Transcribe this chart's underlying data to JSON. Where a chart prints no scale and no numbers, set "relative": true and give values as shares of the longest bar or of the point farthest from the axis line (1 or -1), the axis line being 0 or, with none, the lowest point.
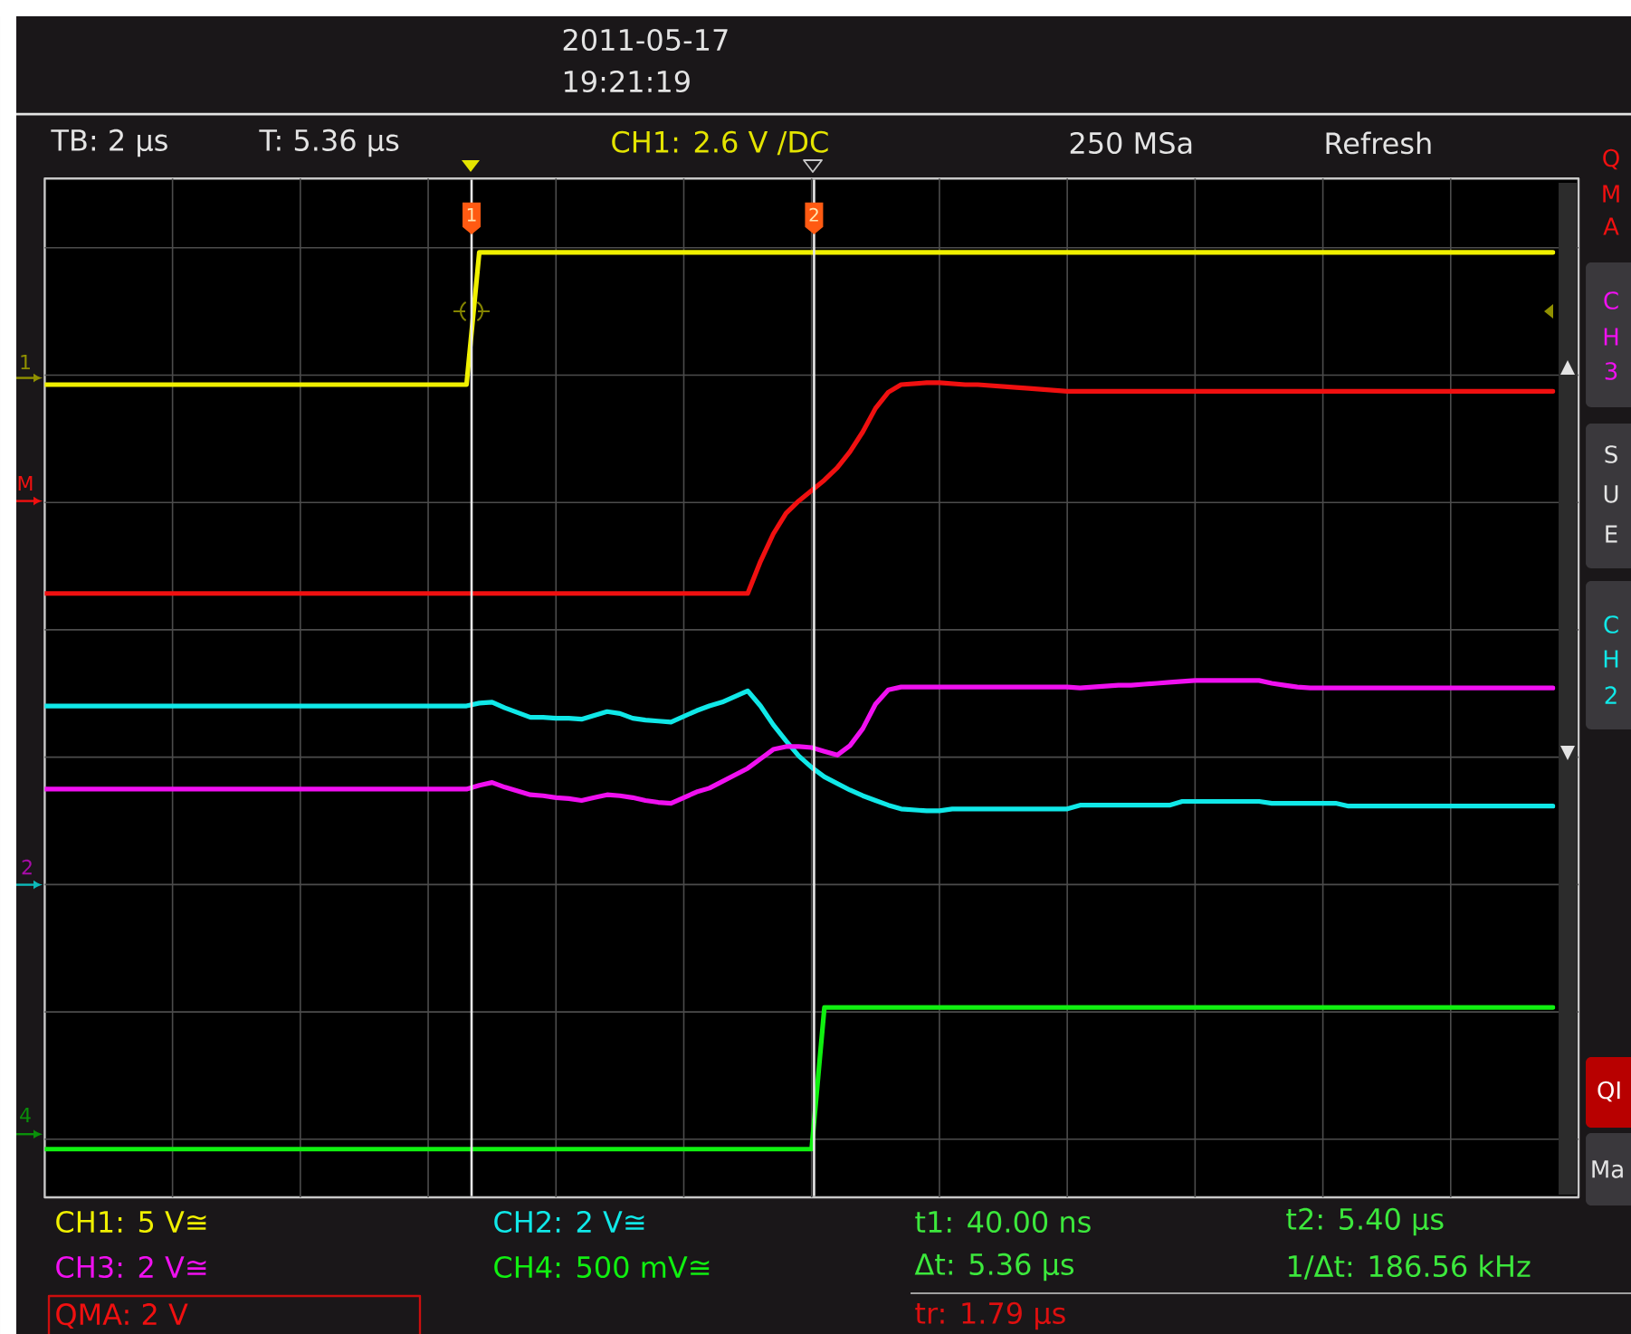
{
  "chart_data": {
    "type": "line",
    "relative": true,
    "grid": true,
    "categories": [
      null,
      null,
      null,
      null,
      null,
      null,
      null,
      null,
      null,
      null,
      null,
      null,
      null,
      null,
      null,
      null,
      null,
      null,
      null,
      null,
      null,
      null,
      null,
      null,
      null,
      null,
      null,
      null,
      null,
      null,
      null,
      null,
      null,
      null,
      null,
      null,
      null,
      null,
      null,
      null,
      null,
      null,
      null,
      null,
      null,
      null,
      null,
      null,
      null,
      null,
      null,
      null,
      null,
      null,
      null,
      null,
      null,
      null,
      null,
      null,
      null,
      null,
      null,
      null,
      null,
      null,
      null,
      null,
      null,
      null,
      null,
      null,
      null,
      null,
      null,
      null,
      null,
      null,
      null,
      null,
      null,
      null,
      null,
      null,
      null,
      null,
      null,
      null,
      null,
      null,
      null,
      null,
      null,
      null,
      null,
      null,
      null,
      null,
      null,
      null,
      null,
      null,
      null,
      null,
      null,
      null,
      null,
      null,
      null,
      null,
      null,
      null,
      null,
      null,
      null,
      null,
      null,
      null,
      null
    ],
    "series": [
      {
        "name": "CH1: 5 V≅",
        "color": "#F0F000",
        "values": [
          0.86,
          0.86,
          0.86,
          0.86,
          0.86,
          0.86,
          0.86,
          0.86,
          0.86,
          0.86,
          0.86,
          0.86,
          0.86,
          0.86,
          0.86,
          0.86,
          0.86,
          0.86,
          0.86,
          0.86,
          0.86,
          0.86,
          0.86,
          0.86,
          0.86,
          0.86,
          0.86,
          0.86,
          0.86,
          0.86,
          0.86,
          0.86,
          0.86,
          0.86,
          1,
          1,
          1,
          1,
          1,
          1,
          1,
          1,
          1,
          1,
          1,
          1,
          1,
          1,
          1,
          1,
          1,
          1,
          1,
          1,
          1,
          1,
          1,
          1,
          1,
          1,
          1,
          1,
          1,
          1,
          1,
          1,
          1,
          1,
          1,
          1,
          1,
          1,
          1,
          1,
          1,
          1,
          1,
          1,
          1,
          1,
          1,
          1,
          1,
          1,
          1,
          1,
          1,
          1,
          1,
          1,
          1,
          1,
          1,
          1,
          1,
          1,
          1,
          1,
          1,
          1,
          1,
          1,
          1,
          1,
          1,
          1,
          1,
          1,
          1,
          1,
          1,
          1,
          1,
          1,
          1,
          1,
          1,
          1,
          1
        ]
      },
      {
        "name": "CH2: 2 V≅",
        "color": "#10E8E8",
        "values": [
          0.52,
          0.52,
          0.52,
          0.52,
          0.52,
          0.52,
          0.52,
          0.52,
          0.52,
          0.52,
          0.52,
          0.52,
          0.52,
          0.52,
          0.52,
          0.52,
          0.52,
          0.52,
          0.52,
          0.52,
          0.52,
          0.52,
          0.52,
          0.52,
          0.52,
          0.52,
          0.52,
          0.52,
          0.52,
          0.52,
          0.52,
          0.52,
          0.52,
          0.52,
          0.523,
          0.524,
          0.518,
          0.513,
          0.508,
          0.508,
          0.507,
          0.507,
          0.506,
          0.51,
          0.514,
          0.512,
          0.507,
          0.505,
          0.504,
          0.503,
          0.509,
          0.515,
          0.52,
          0.524,
          0.53,
          0.536,
          0.52,
          0.5,
          0.483,
          0.467,
          0.455,
          0.445,
          0.438,
          0.431,
          0.425,
          0.42,
          0.415,
          0.411,
          0.41,
          0.409,
          0.409,
          0.411,
          0.411,
          0.411,
          0.411,
          0.411,
          0.411,
          0.411,
          0.411,
          0.411,
          0.411,
          0.415,
          0.415,
          0.415,
          0.415,
          0.415,
          0.415,
          0.415,
          0.415,
          0.419,
          0.419,
          0.419,
          0.419,
          0.419,
          0.419,
          0.419,
          0.417,
          0.417,
          0.417,
          0.417,
          0.417,
          0.417,
          0.414,
          0.414,
          0.414,
          0.414,
          0.414,
          0.414,
          0.414,
          0.414,
          0.414,
          0.414,
          0.414,
          0.414,
          0.414,
          0.414,
          0.414,
          0.414,
          0.414
        ]
      },
      {
        "name": "CH3: 2 V≅",
        "color": "#F010F0",
        "values": [
          0.432,
          0.432,
          0.432,
          0.432,
          0.432,
          0.432,
          0.432,
          0.432,
          0.432,
          0.432,
          0.432,
          0.432,
          0.432,
          0.432,
          0.432,
          0.432,
          0.432,
          0.432,
          0.432,
          0.432,
          0.432,
          0.432,
          0.432,
          0.432,
          0.432,
          0.432,
          0.432,
          0.432,
          0.432,
          0.432,
          0.432,
          0.432,
          0.432,
          0.432,
          0.436,
          0.439,
          0.434,
          0.43,
          0.426,
          0.425,
          0.423,
          0.422,
          0.42,
          0.423,
          0.426,
          0.425,
          0.423,
          0.42,
          0.418,
          0.417,
          0.423,
          0.429,
          0.433,
          0.44,
          0.447,
          0.454,
          0.464,
          0.474,
          0.477,
          0.477,
          0.476,
          0.472,
          0.468,
          0.478,
          0.496,
          0.522,
          0.537,
          0.54,
          0.54,
          0.54,
          0.54,
          0.54,
          0.54,
          0.54,
          0.54,
          0.54,
          0.54,
          0.54,
          0.54,
          0.54,
          0.54,
          0.539,
          0.54,
          0.541,
          0.542,
          0.542,
          0.543,
          0.544,
          0.545,
          0.546,
          0.547,
          0.547,
          0.547,
          0.547,
          0.547,
          0.547,
          0.544,
          0.542,
          0.54,
          0.539,
          0.539,
          0.539,
          0.539,
          0.539,
          0.539,
          0.539,
          0.539,
          0.539,
          0.539,
          0.539,
          0.539,
          0.539,
          0.539,
          0.539,
          0.539,
          0.539,
          0.539,
          0.539,
          0.539
        ]
      },
      {
        "name": "CH4: 500 mV≅",
        "color": "#10F010",
        "values": [
          0.051,
          0.051,
          0.051,
          0.051,
          0.051,
          0.051,
          0.051,
          0.051,
          0.051,
          0.051,
          0.051,
          0.051,
          0.051,
          0.051,
          0.051,
          0.051,
          0.051,
          0.051,
          0.051,
          0.051,
          0.051,
          0.051,
          0.051,
          0.051,
          0.051,
          0.051,
          0.051,
          0.051,
          0.051,
          0.051,
          0.051,
          0.051,
          0.051,
          0.051,
          0.051,
          0.051,
          0.051,
          0.051,
          0.051,
          0.051,
          0.051,
          0.051,
          0.051,
          0.051,
          0.051,
          0.051,
          0.051,
          0.051,
          0.051,
          0.051,
          0.051,
          0.051,
          0.051,
          0.051,
          0.051,
          0.051,
          0.051,
          0.051,
          0.051,
          0.051,
          0.051,
          0.201,
          0.201,
          0.201,
          0.201,
          0.201,
          0.201,
          0.201,
          0.201,
          0.201,
          0.201,
          0.201,
          0.201,
          0.201,
          0.201,
          0.201,
          0.201,
          0.201,
          0.201,
          0.201,
          0.201,
          0.201,
          0.201,
          0.201,
          0.201,
          0.201,
          0.201,
          0.201,
          0.201,
          0.201,
          0.201,
          0.201,
          0.201,
          0.201,
          0.201,
          0.201,
          0.201,
          0.201,
          0.201,
          0.201,
          0.201,
          0.201,
          0.201,
          0.201,
          0.201,
          0.201,
          0.201,
          0.201,
          0.201,
          0.201,
          0.201,
          0.201,
          0.201,
          0.201,
          0.201,
          0.201,
          0.201,
          0.201,
          0.201
        ]
      },
      {
        "name": "QMA: 2 V",
        "color": "#F01010",
        "values": [
          0.639,
          0.639,
          0.639,
          0.639,
          0.639,
          0.639,
          0.639,
          0.639,
          0.639,
          0.639,
          0.639,
          0.639,
          0.639,
          0.639,
          0.639,
          0.639,
          0.639,
          0.639,
          0.639,
          0.639,
          0.639,
          0.639,
          0.639,
          0.639,
          0.639,
          0.639,
          0.639,
          0.639,
          0.639,
          0.639,
          0.639,
          0.639,
          0.639,
          0.639,
          0.639,
          0.639,
          0.639,
          0.639,
          0.639,
          0.639,
          0.639,
          0.639,
          0.639,
          0.639,
          0.639,
          0.639,
          0.639,
          0.639,
          0.639,
          0.639,
          0.639,
          0.639,
          0.639,
          0.639,
          0.639,
          0.639,
          0.673,
          0.702,
          0.724,
          0.737,
          0.748,
          0.759,
          0.772,
          0.789,
          0.81,
          0.835,
          0.852,
          0.86,
          0.861,
          0.862,
          0.862,
          0.861,
          0.86,
          0.86,
          0.859,
          0.858,
          0.857,
          0.856,
          0.855,
          0.854,
          0.853,
          0.853,
          0.853,
          0.853,
          0.853,
          0.853,
          0.853,
          0.853,
          0.853,
          0.853,
          0.853,
          0.853,
          0.853,
          0.853,
          0.853,
          0.853,
          0.853,
          0.853,
          0.853,
          0.853,
          0.853,
          0.853,
          0.853,
          0.853,
          0.853,
          0.853,
          0.853,
          0.853,
          0.853,
          0.853,
          0.853,
          0.853,
          0.853,
          0.853,
          0.853,
          0.853,
          0.853,
          0.853,
          0.853
        ]
      }
    ],
    "annotations": [
      "2011-05-17",
      "19:21:19",
      "TB: 2 µs",
      "T: 5.36 µs",
      "CH1: 2.6 V ∕DC",
      "250 MSa",
      "Refresh",
      "t1: 40.00 ns",
      "t2: 5.40 µs",
      "Δt: 5.36 µs",
      "1/Δt: 186.56 kHz",
      "tr: 1.79 µs",
      "1",
      "M",
      "2",
      "4",
      "Q",
      "M",
      "A",
      "C",
      "H",
      "3",
      "S",
      "U",
      "E",
      "C",
      "H",
      "2",
      "QI",
      "Ma",
      "1",
      "2"
    ]
  }
}
